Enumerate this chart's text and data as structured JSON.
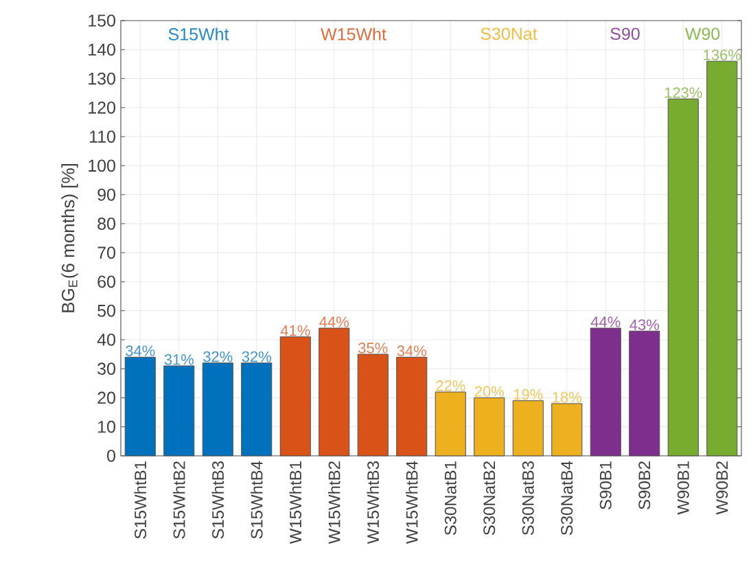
{
  "chart_data": {
    "type": "bar",
    "ylabel": "BG$_{E}$(6 months) [%]",
    "categories": [
      "S15WhtB1",
      "S15WhtB2",
      "S15WhtB3",
      "S15WhtB4",
      "W15WhtB1",
      "W15WhtB2",
      "W15WhtB3",
      "W15WhtB4",
      "S30NatB1",
      "S30NatB2",
      "S30NatB3",
      "S30NatB4",
      "S90B1",
      "S90B2",
      "W90B1",
      "W90B2"
    ],
    "series": [
      {
        "name": "S15Wht",
        "color": "#0072bd",
        "values": [
          34,
          31,
          32,
          32,
          null,
          null,
          null,
          null,
          null,
          null,
          null,
          null,
          null,
          null,
          null,
          null
        ],
        "value_labels": [
          "34%",
          "31%",
          "32%",
          "32%",
          null,
          null,
          null,
          null,
          null,
          null,
          null,
          null,
          null,
          null,
          null,
          null
        ]
      },
      {
        "name": "W15Wht",
        "color": "#d95319",
        "values": [
          null,
          null,
          null,
          null,
          41,
          44,
          35,
          34,
          null,
          null,
          null,
          null,
          null,
          null,
          null,
          null
        ],
        "value_labels": [
          null,
          null,
          null,
          null,
          "41%",
          "44%",
          "35%",
          "34%",
          null,
          null,
          null,
          null,
          null,
          null,
          null,
          null
        ]
      },
      {
        "name": "S30Nat",
        "color": "#edb120",
        "values": [
          null,
          null,
          null,
          null,
          null,
          null,
          null,
          null,
          22,
          20,
          19,
          18,
          null,
          null,
          null,
          null
        ],
        "value_labels": [
          null,
          null,
          null,
          null,
          null,
          null,
          null,
          null,
          "22%",
          "20%",
          "19%",
          "18%",
          null,
          null,
          null,
          null
        ]
      },
      {
        "name": "S90",
        "color": "#7e2f8e",
        "values": [
          null,
          null,
          null,
          null,
          null,
          null,
          null,
          null,
          null,
          null,
          null,
          null,
          44,
          43,
          null,
          null
        ],
        "value_labels": [
          null,
          null,
          null,
          null,
          null,
          null,
          null,
          null,
          null,
          null,
          null,
          null,
          "44%",
          "43%",
          null,
          null
        ]
      },
      {
        "name": "W90",
        "color": "#77ac30",
        "values": [
          null,
          null,
          null,
          null,
          null,
          null,
          null,
          null,
          null,
          null,
          null,
          null,
          null,
          null,
          123,
          136
        ],
        "value_labels": [
          null,
          null,
          null,
          null,
          null,
          null,
          null,
          null,
          null,
          null,
          null,
          null,
          null,
          null,
          "123%",
          "136%"
        ]
      }
    ],
    "ylim": [
      0,
      150
    ],
    "yticks": [
      0,
      10,
      20,
      30,
      40,
      50,
      60,
      70,
      80,
      90,
      100,
      110,
      120,
      130,
      140,
      150
    ],
    "grid": true,
    "legend": "top"
  }
}
